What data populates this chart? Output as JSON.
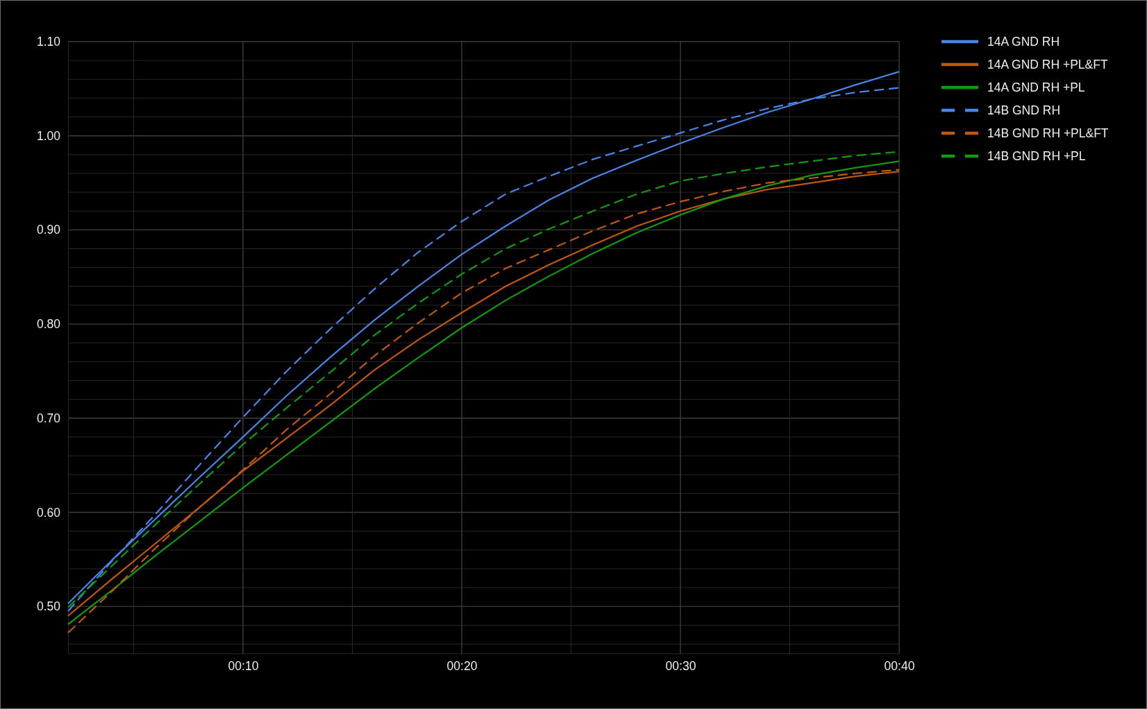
{
  "chart_data": {
    "type": "line",
    "x": [
      2,
      4,
      6,
      8,
      10,
      12,
      14,
      16,
      18,
      20,
      22,
      24,
      26,
      28,
      30,
      32,
      34,
      36,
      38,
      40
    ],
    "series": [
      {
        "name": "14A GND RH",
        "color": "#4a86e8",
        "line_style": "solid",
        "values": [
          0.503,
          0.549,
          0.593,
          0.637,
          0.68,
          0.724,
          0.765,
          0.804,
          0.84,
          0.874,
          0.904,
          0.932,
          0.955,
          0.974,
          0.992,
          1.009,
          1.025,
          1.039,
          1.054,
          1.068
        ]
      },
      {
        "name": "14A GND RH +PL&FT",
        "color": "#c2580f",
        "line_style": "solid",
        "values": [
          0.49,
          0.529,
          0.567,
          0.605,
          0.644,
          0.679,
          0.714,
          0.751,
          0.783,
          0.812,
          0.84,
          0.863,
          0.884,
          0.904,
          0.92,
          0.933,
          0.943,
          0.95,
          0.957,
          0.962
        ]
      },
      {
        "name": "14A GND RH +PL",
        "color": "#0f9d0f",
        "line_style": "solid",
        "values": [
          0.481,
          0.517,
          0.554,
          0.59,
          0.626,
          0.661,
          0.696,
          0.731,
          0.764,
          0.796,
          0.825,
          0.851,
          0.875,
          0.897,
          0.916,
          0.933,
          0.947,
          0.958,
          0.966,
          0.973
        ]
      },
      {
        "name": "14B GND RH",
        "color": "#4a86e8",
        "line_style": "dashed",
        "values": [
          0.495,
          0.548,
          0.598,
          0.65,
          0.701,
          0.75,
          0.795,
          0.837,
          0.876,
          0.909,
          0.938,
          0.957,
          0.975,
          0.989,
          1.003,
          1.017,
          1.029,
          1.039,
          1.046,
          1.051
        ]
      },
      {
        "name": "14B GND RH +PL&FT",
        "color": "#c2580f",
        "line_style": "dashed",
        "values": [
          0.472,
          0.516,
          0.562,
          0.605,
          0.645,
          0.688,
          0.726,
          0.766,
          0.801,
          0.833,
          0.859,
          0.879,
          0.899,
          0.917,
          0.93,
          0.941,
          0.95,
          0.955,
          0.96,
          0.964
        ]
      },
      {
        "name": "14B GND RH +PL",
        "color": "#0f9d0f",
        "line_style": "dashed",
        "values": [
          0.499,
          0.543,
          0.587,
          0.63,
          0.672,
          0.711,
          0.749,
          0.788,
          0.822,
          0.853,
          0.88,
          0.901,
          0.92,
          0.938,
          0.952,
          0.96,
          0.967,
          0.973,
          0.979,
          0.983
        ]
      }
    ],
    "xlim": [
      2,
      40
    ],
    "ylim": [
      0.45,
      1.1
    ],
    "xticks": [
      {
        "value": 5,
        "label": null
      },
      {
        "value": 10,
        "label": "00:10"
      },
      {
        "value": 15,
        "label": null
      },
      {
        "value": 20,
        "label": "00:20"
      },
      {
        "value": 25,
        "label": null
      },
      {
        "value": 30,
        "label": "00:30"
      },
      {
        "value": 35,
        "label": null
      },
      {
        "value": 40,
        "label": "00:40"
      }
    ],
    "yticks": [
      {
        "value": 0.46,
        "label": null
      },
      {
        "value": 0.48,
        "label": null
      },
      {
        "value": 0.5,
        "label": "0.50"
      },
      {
        "value": 0.52,
        "label": null
      },
      {
        "value": 0.54,
        "label": null
      },
      {
        "value": 0.56,
        "label": null
      },
      {
        "value": 0.58,
        "label": null
      },
      {
        "value": 0.6,
        "label": "0.60"
      },
      {
        "value": 0.62,
        "label": null
      },
      {
        "value": 0.64,
        "label": null
      },
      {
        "value": 0.66,
        "label": null
      },
      {
        "value": 0.68,
        "label": null
      },
      {
        "value": 0.7,
        "label": "0.70"
      },
      {
        "value": 0.72,
        "label": null
      },
      {
        "value": 0.74,
        "label": null
      },
      {
        "value": 0.76,
        "label": null
      },
      {
        "value": 0.78,
        "label": null
      },
      {
        "value": 0.8,
        "label": "0.80"
      },
      {
        "value": 0.82,
        "label": null
      },
      {
        "value": 0.84,
        "label": null
      },
      {
        "value": 0.86,
        "label": null
      },
      {
        "value": 0.88,
        "label": null
      },
      {
        "value": 0.9,
        "label": "0.90"
      },
      {
        "value": 0.92,
        "label": null
      },
      {
        "value": 0.94,
        "label": null
      },
      {
        "value": 0.96,
        "label": null
      },
      {
        "value": 0.98,
        "label": null
      },
      {
        "value": 1,
        "label": "1.00"
      },
      {
        "value": 1.02,
        "label": null
      },
      {
        "value": 1.04,
        "label": null
      },
      {
        "value": 1.06,
        "label": null
      },
      {
        "value": 1.08,
        "label": null
      },
      {
        "value": 1.1,
        "label": "1.10"
      }
    ],
    "grid": true,
    "legend": "top right"
  }
}
